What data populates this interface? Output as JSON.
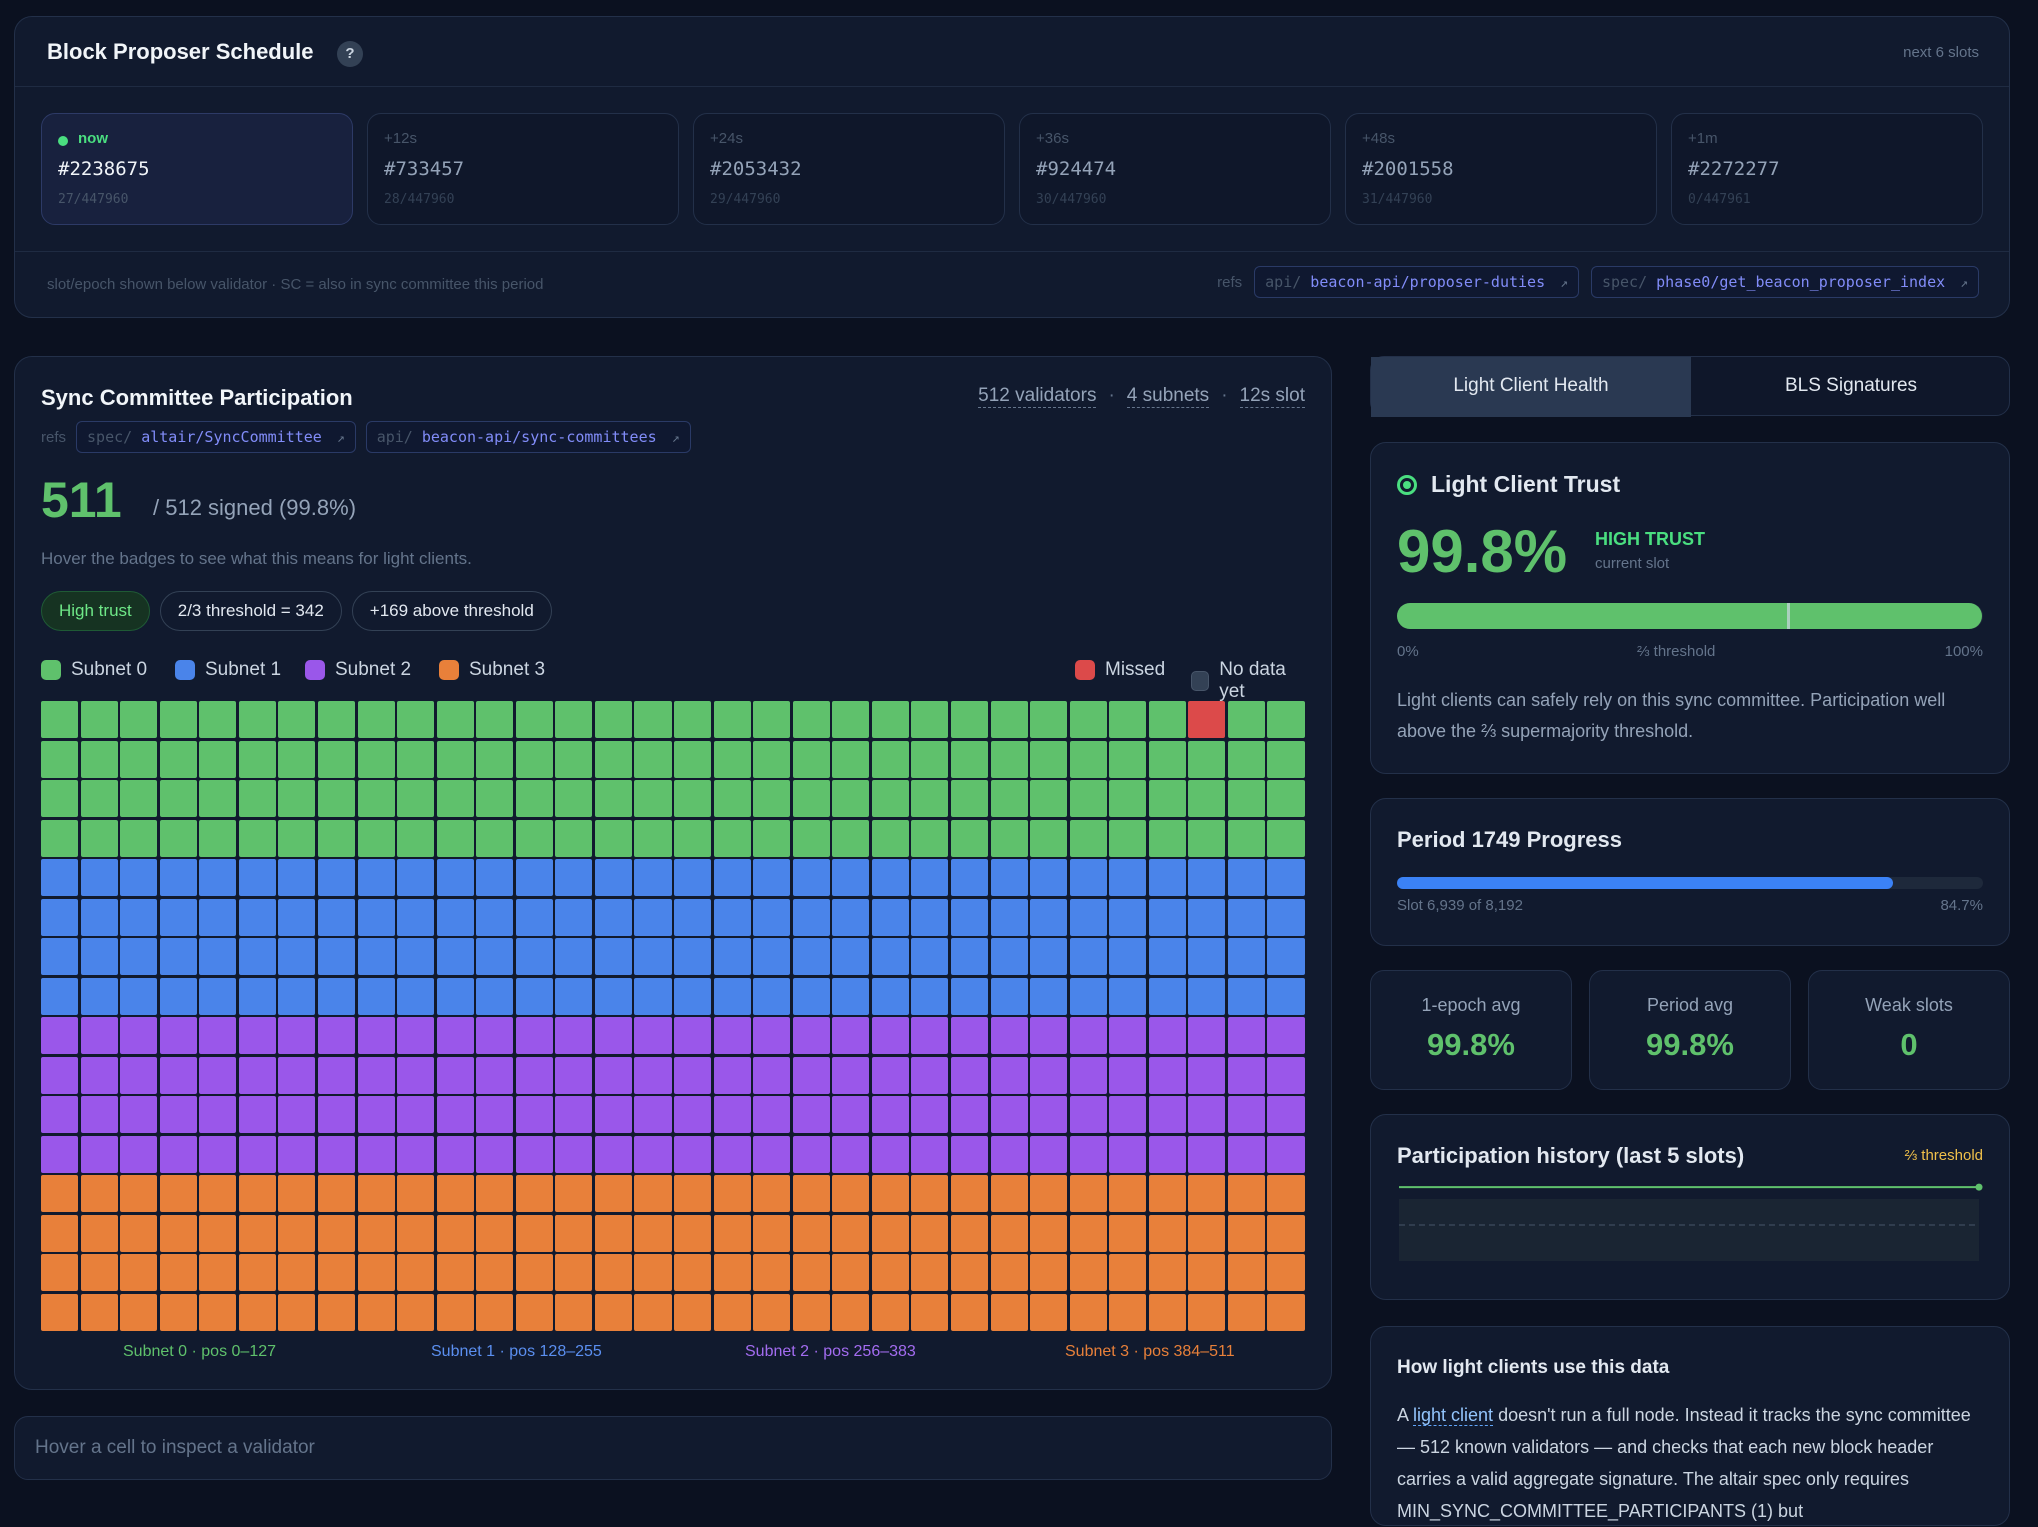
{
  "proposer": {
    "title": "Block Proposer Schedule",
    "help": "?",
    "range": "next 6 slots",
    "slots": [
      {
        "when": "now",
        "number": "#2238675",
        "sub": "27/447960"
      },
      {
        "when": "+12s",
        "number": "#733457",
        "sub": "28/447960"
      },
      {
        "when": "+24s",
        "number": "#2053432",
        "sub": "29/447960"
      },
      {
        "when": "+36s",
        "number": "#924474",
        "sub": "30/447960"
      },
      {
        "when": "+48s",
        "number": "#2001558",
        "sub": "31/447960"
      },
      {
        "when": "+1m",
        "number": "#2272277",
        "sub": "0/447961"
      }
    ],
    "footnote": "slot/epoch shown below validator · SC = also in sync committee this period",
    "refs_label": "refs",
    "refs": [
      {
        "prefix": "api/",
        "path": "beacon-api/proposer-duties",
        "arrow": "↗"
      },
      {
        "prefix": "spec/",
        "path": "phase0/get_beacon_proposer_index",
        "arrow": "↗"
      }
    ]
  },
  "sync": {
    "title": "Sync Committee Participation",
    "meta": {
      "validators": "512 validators",
      "sep1": "·",
      "subnets": "4 subnets",
      "sep2": "·",
      "slot": "12s slot"
    },
    "refs_label": "refs",
    "refs": [
      {
        "prefix": "spec/",
        "path": "altair/SyncCommittee",
        "arrow": "↗"
      },
      {
        "prefix": "api/",
        "path": "beacon-api/sync-committees",
        "arrow": "↗"
      }
    ],
    "signed": "511",
    "signed_sub": "/ 512 signed (99.8%)",
    "hint": "Hover the badges to see what this means for light clients.",
    "badges": {
      "trust": "High trust",
      "threshold": "2/3 threshold = 342",
      "above": "+169 above threshold"
    },
    "legend": {
      "s0": "Subnet 0",
      "s1": "Subnet 1",
      "s2": "Subnet 2",
      "s3": "Subnet 3",
      "missed": "Missed",
      "nodata": "No data yet"
    },
    "grid": {
      "columns": 32,
      "rows": 16,
      "missed_index": 29
    },
    "subnet_labels": [
      "Subnet 0 · pos 0–127",
      "Subnet 1 · pos 128–255",
      "Subnet 2 · pos 256–383",
      "Subnet 3 · pos 384–511"
    ],
    "colors": {
      "s0": "#5fc16c",
      "s1": "#4a84ea",
      "s2": "#9a57ea",
      "s3": "#e8803a",
      "missed": "#dc4a4a",
      "nodata": "#334155"
    }
  },
  "inspect": {
    "placeholder": "Hover a cell to inspect a validator"
  },
  "tabs": {
    "active": "Light Client Health",
    "inactive": "BLS Signatures"
  },
  "trust": {
    "title": "Light Client Trust",
    "pct": "99.8%",
    "level": "HIGH TRUST",
    "level_sub": "current slot",
    "fill_fraction": 0.998,
    "threshold_fraction": 0.6667,
    "bar_left": "0%",
    "bar_mid": "⅔ threshold",
    "bar_right": "100%",
    "desc": "Light clients can safely rely on this sync committee. Participation well above the ⅔ supermajority threshold."
  },
  "period": {
    "title": "Period 1749 Progress",
    "slot_text": "Slot 6,939 of 8,192",
    "pct_text": "84.7%",
    "fraction": 0.847
  },
  "stats": [
    {
      "label": "1-epoch avg",
      "value": "99.8%"
    },
    {
      "label": "Period avg",
      "value": "99.8%"
    },
    {
      "label": "Weak slots",
      "value": "0"
    }
  ],
  "history": {
    "title": "Participation history (last 5 slots)",
    "legend": "⅔ threshold",
    "values": [
      0.998,
      0.998,
      0.998,
      0.998,
      0.998
    ],
    "threshold": 0.6667
  },
  "how": {
    "title": "How light clients use this data",
    "p_pre": "A ",
    "p_link": "light client",
    "p_post": " doesn't run a full node. Instead it tracks the sync committee — 512 known validators — and checks that each new block header carries a valid aggregate signature. The altair spec only requires MIN_SYNC_COMMITTEE_PARTICIPANTS (1) but"
  }
}
